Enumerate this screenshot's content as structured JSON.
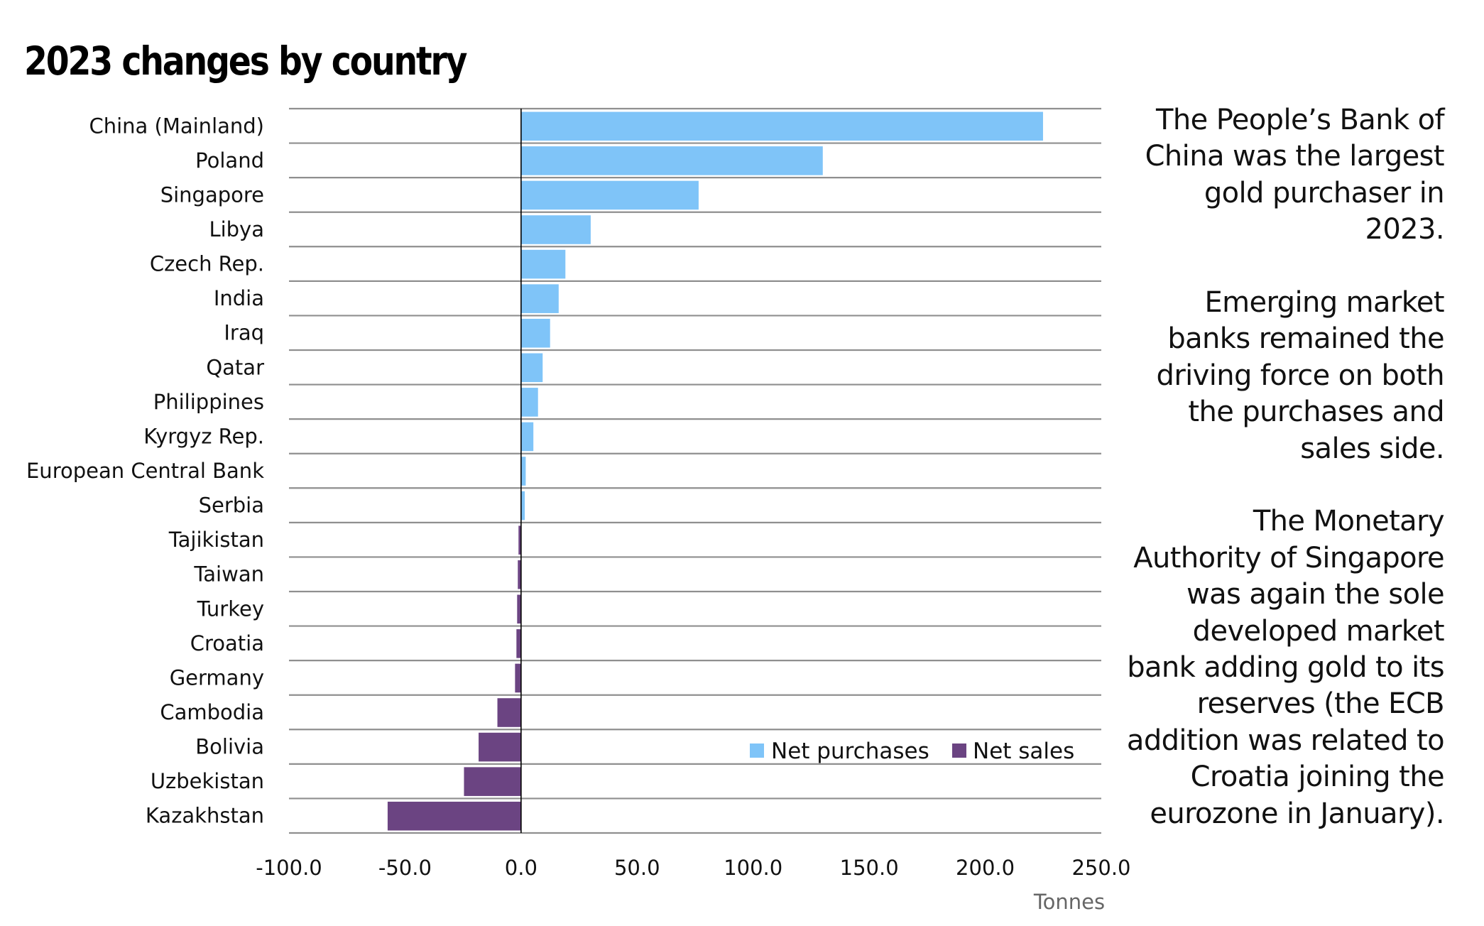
{
  "title": "2023 changes by country",
  "notes": [
    "The People’s Bank of China was the largest gold purchaser in 2023.",
    "Emerging market banks remained the driving force on both the purchases and sales side.",
    "The Monetary Authority of Singapore was again the sole developed market bank adding gold to its reserves (the ECB addition was related to Croatia joining the eurozone in January)."
  ],
  "colors": {
    "net_purchases": "#7fc4f8",
    "net_sales": "#6b4482",
    "gridline": "#8f8f8f",
    "zero_line": "#000000"
  },
  "chart_data": {
    "type": "bar",
    "orientation": "horizontal",
    "title": "2023 changes by country",
    "xlabel": "Tonnes",
    "ylabel": "",
    "xlim": [
      -100,
      250
    ],
    "xticks": [
      -100,
      -50,
      0,
      50,
      100,
      150,
      200,
      250
    ],
    "xtick_labels": [
      "-100.0",
      "-50.0",
      "0.0",
      "50.0",
      "100.0",
      "150.0",
      "200.0",
      "250.0"
    ],
    "grid": "horizontal row separators",
    "legend": {
      "placement": "bottom-right",
      "entries": [
        {
          "label": "Net purchases",
          "color": "#7fc4f8"
        },
        {
          "label": "Net sales",
          "color": "#6b4482"
        }
      ]
    },
    "categories": [
      "China (Mainland)",
      "Poland",
      "Singapore",
      "Libya",
      "Czech Rep.",
      "India",
      "Iraq",
      "Qatar",
      "Philippines",
      "Kyrgyz Rep.",
      "European Central Bank",
      "Serbia",
      "Tajikistan",
      "Taiwan",
      "Turkey",
      "Croatia",
      "Germany",
      "Cambodia",
      "Bolivia",
      "Uzbekistan",
      "Kazakhstan"
    ],
    "values": [
      224.9,
      130.0,
      76.5,
      30.0,
      19.1,
      16.2,
      12.5,
      9.3,
      7.3,
      5.3,
      2.0,
      1.6,
      -1.1,
      -1.4,
      -1.7,
      -2.0,
      -2.6,
      -10.2,
      -18.3,
      -24.6,
      -57.5
    ]
  }
}
